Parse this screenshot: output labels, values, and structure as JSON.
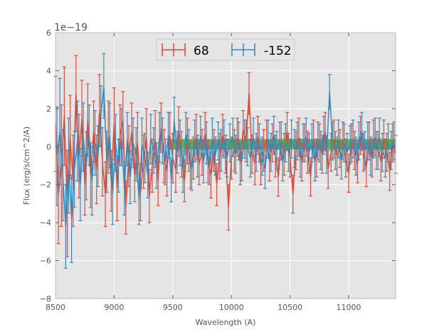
{
  "chart_data": {
    "type": "line",
    "title": "",
    "xlabel": "Wavelength (A)",
    "ylabel": "Flux (erg/s/cm^2/A)",
    "offset_text": "1e−19",
    "xlim": [
      8500,
      11400
    ],
    "ylim": [
      -8,
      6
    ],
    "xticks": [
      8500,
      9000,
      9500,
      10000,
      10500,
      11000
    ],
    "xtick_labels": [
      "8500",
      "9000",
      "9500",
      "10000",
      "10500",
      "11000"
    ],
    "yticks": [
      -8,
      -6,
      -4,
      -2,
      0,
      2,
      4,
      6
    ],
    "ytick_labels": [
      "−8",
      "−6",
      "−4",
      "−2",
      "0",
      "2",
      "4",
      "6"
    ],
    "grid": true,
    "legend_position": "top-center",
    "band": {
      "x0": 9470,
      "x1": 11400,
      "y0": -0.15,
      "y1": 0.4,
      "color": "#2ca02c"
    },
    "series": [
      {
        "name": "68",
        "color": "#e24a33",
        "x": [
          8500,
          8525,
          8550,
          8575,
          8600,
          8625,
          8650,
          8675,
          8700,
          8725,
          8750,
          8775,
          8800,
          8825,
          8850,
          8875,
          8900,
          8925,
          8950,
          8975,
          9000,
          9025,
          9050,
          9075,
          9100,
          9125,
          9150,
          9175,
          9200,
          9225,
          9250,
          9275,
          9300,
          9325,
          9350,
          9375,
          9400,
          9425,
          9450,
          9475,
          9500,
          9525,
          9550,
          9575,
          9600,
          9625,
          9650,
          9675,
          9700,
          9725,
          9750,
          9775,
          9800,
          9825,
          9850,
          9875,
          9900,
          9925,
          9950,
          9975,
          10000,
          10025,
          10050,
          10075,
          10100,
          10125,
          10150,
          10175,
          10200,
          10225,
          10250,
          10275,
          10300,
          10325,
          10350,
          10375,
          10400,
          10425,
          10450,
          10475,
          10500,
          10525,
          10550,
          10575,
          10600,
          10625,
          10650,
          10675,
          10700,
          10725,
          10750,
          10775,
          10800,
          10825,
          10850,
          10875,
          10900,
          10925,
          10950,
          10975,
          11000,
          11025,
          11050,
          11075,
          11100,
          11125,
          11150,
          11175,
          11200,
          11225,
          11250,
          11275,
          11300,
          11325,
          11350,
          11375,
          11400
        ],
        "y": [
          1.2,
          -2.5,
          -1.0,
          1.6,
          -3.0,
          0.5,
          -1.8,
          2.8,
          -0.5,
          1.5,
          -2.0,
          1.4,
          -1.5,
          0.8,
          -1.2,
          1.9,
          -0.8,
          -2.5,
          0.5,
          -1.8,
          1.2,
          -2.2,
          0.6,
          1.4,
          -3.2,
          -0.5,
          0.8,
          -1.5,
          0.2,
          -2.4,
          -0.8,
          0.5,
          -2.6,
          -1.0,
          0.4,
          -1.8,
          1.0,
          -0.5,
          -1.3,
          0.6,
          -0.6,
          -1.2,
          0.8,
          -0.4,
          -1.8,
          0.3,
          -1.0,
          -0.6,
          0.5,
          -0.9,
          -0.3,
          0.7,
          -0.8,
          -1.5,
          -0.2,
          -2.0,
          -0.5,
          0.6,
          -0.4,
          -3.2,
          -0.6,
          -0.2,
          0.5,
          -0.9,
          0.9,
          0.3,
          2.8,
          -0.4,
          -0.9,
          0.6,
          -1.0,
          -0.2,
          0.4,
          -0.8,
          0.2,
          -0.5,
          -1.6,
          0.3,
          -0.4,
          0.8,
          -0.6,
          -2.5,
          -0.2,
          0.5,
          -0.8,
          0.2,
          -0.3,
          -1.6,
          0.4,
          -0.6,
          0.2,
          -0.4,
          0.8,
          -1.2,
          -0.3,
          0.4,
          -0.5,
          -0.1,
          0.3,
          -0.6,
          -1.4,
          0.2,
          -0.2,
          -0.9,
          0.6,
          -0.3,
          -1.1,
          0.3,
          -0.6,
          0.5,
          -0.2,
          -0.8,
          0.4,
          -0.3,
          -1.3,
          0.2,
          -0.4
        ],
        "err": [
          2.5,
          2.6,
          3.2,
          2.6,
          2.8,
          2.2,
          2.4,
          2.0,
          2.2,
          2.0,
          1.6,
          1.9,
          1.7,
          1.6,
          1.8,
          1.9,
          1.8,
          1.7,
          1.9,
          1.6,
          1.9,
          1.7,
          1.6,
          1.5,
          1.4,
          1.6,
          1.5,
          1.4,
          1.6,
          1.5,
          1.4,
          1.5,
          1.4,
          1.4,
          1.5,
          1.3,
          1.3,
          1.4,
          1.3,
          1.2,
          1.3,
          1.2,
          1.3,
          1.2,
          1.1,
          1.2,
          1.2,
          1.1,
          1.2,
          1.1,
          1.2,
          1.1,
          1.1,
          1.2,
          1.1,
          1.1,
          1.2,
          1.1,
          1.0,
          1.2,
          1.1,
          1.1,
          1.0,
          1.1,
          1.0,
          1.1,
          1.1,
          1.0,
          1.1,
          1.0,
          1.0,
          1.1,
          1.0,
          1.0,
          1.0,
          1.1,
          1.0,
          1.0,
          1.1,
          1.0,
          1.0,
          1.0,
          1.0,
          1.0,
          1.0,
          1.0,
          1.1,
          1.0,
          1.0,
          1.0,
          1.0,
          1.0,
          1.0,
          1.0,
          1.0,
          1.0,
          1.0,
          1.0,
          1.0,
          1.0,
          1.0,
          1.0,
          1.0,
          1.0,
          1.0,
          1.0,
          1.0,
          1.0,
          1.0,
          1.0,
          1.0,
          1.0,
          1.0,
          1.0,
          1.0,
          1.0,
          1.0
        ]
      },
      {
        "name": "-152",
        "color": "#348abd",
        "x": [
          8512,
          8537,
          8562,
          8587,
          8612,
          8637,
          8662,
          8687,
          8712,
          8737,
          8762,
          8787,
          8812,
          8837,
          8862,
          8887,
          8912,
          8937,
          8962,
          8987,
          9012,
          9037,
          9062,
          9087,
          9112,
          9137,
          9162,
          9187,
          9212,
          9237,
          9262,
          9287,
          9312,
          9337,
          9362,
          9387,
          9412,
          9437,
          9462,
          9487,
          9512,
          9537,
          9562,
          9587,
          9612,
          9637,
          9662,
          9687,
          9712,
          9737,
          9762,
          9787,
          9812,
          9837,
          9862,
          9887,
          9912,
          9937,
          9962,
          9987,
          10012,
          10037,
          10062,
          10087,
          10112,
          10137,
          10162,
          10187,
          10212,
          10237,
          10262,
          10287,
          10312,
          10337,
          10362,
          10387,
          10412,
          10437,
          10462,
          10487,
          10512,
          10537,
          10562,
          10587,
          10612,
          10637,
          10662,
          10687,
          10712,
          10737,
          10762,
          10787,
          10812,
          10837,
          10862,
          10887,
          10912,
          10937,
          10962,
          10987,
          11012,
          11037,
          11062,
          11087,
          11112,
          11137,
          11162,
          11187,
          11212,
          11237,
          11262,
          11287,
          11312,
          11337,
          11362,
          11387
        ],
        "y": [
          -0.5,
          0.8,
          -1.5,
          -4.2,
          -1.0,
          -3.8,
          -1.2,
          0.3,
          -2.0,
          0.5,
          -1.0,
          0.6,
          -1.8,
          0.2,
          -0.5,
          1.6,
          3.2,
          -0.8,
          0.6,
          -2.5,
          0.2,
          -1.0,
          0.5,
          -2.2,
          0.4,
          -1.6,
          0.2,
          -0.4,
          -2.8,
          0.1,
          -0.6,
          -1.5,
          0.4,
          -0.2,
          -1.0,
          0.5,
          0.3,
          -0.8,
          0.6,
          -1.8,
          1.4,
          -0.3,
          0.2,
          -1.3,
          0.7,
          -0.2,
          -1.2,
          0.3,
          -0.5,
          0.6,
          -0.8,
          0.2,
          -1.0,
          0.4,
          -0.5,
          0.3,
          -0.2,
          0.4,
          -0.6,
          0.2,
          0.5,
          -0.4,
          0.3,
          -0.8,
          0.4,
          0.0,
          -0.6,
          0.5,
          -0.3,
          0.2,
          -0.5,
          -1.2,
          0.4,
          -0.3,
          0.6,
          -0.2,
          0.3,
          -0.8,
          0.2,
          -0.3,
          0.4,
          -0.1,
          0.3,
          -0.6,
          0.2,
          0.5,
          -0.3,
          0.2,
          -0.8,
          0.3,
          -0.2,
          0.6,
          -0.4,
          2.9,
          0.3,
          -0.2,
          0.4,
          -0.7,
          0.2,
          -0.3,
          0.1,
          0.4,
          -0.5,
          0.3,
          0.8,
          -0.2,
          0.3,
          -0.5,
          0.4,
          -0.2,
          0.5,
          -0.3,
          -0.6,
          0.2,
          -0.2,
          0.3
        ],
        "err": [
          2.6,
          2.8,
          2.4,
          2.2,
          2.5,
          2.3,
          2.0,
          2.1,
          1.9,
          1.8,
          1.8,
          1.6,
          1.8,
          1.7,
          1.6,
          1.6,
          1.7,
          1.6,
          1.7,
          1.6,
          1.5,
          1.4,
          1.5,
          1.4,
          1.4,
          1.4,
          1.3,
          1.4,
          1.3,
          1.4,
          1.3,
          1.2,
          1.3,
          1.2,
          1.2,
          1.3,
          1.2,
          1.2,
          1.2,
          1.1,
          1.2,
          1.1,
          1.2,
          1.1,
          1.1,
          1.1,
          1.1,
          1.1,
          1.1,
          1.0,
          1.1,
          1.1,
          1.0,
          1.1,
          1.0,
          1.0,
          1.1,
          1.0,
          1.0,
          1.0,
          1.0,
          1.0,
          1.0,
          1.0,
          1.0,
          1.0,
          1.0,
          1.0,
          1.0,
          1.0,
          1.0,
          1.0,
          1.0,
          1.0,
          1.0,
          1.0,
          1.0,
          1.0,
          1.0,
          1.0,
          1.0,
          1.0,
          1.0,
          1.0,
          1.0,
          1.0,
          1.0,
          1.0,
          1.0,
          1.0,
          1.0,
          1.0,
          1.0,
          0.9,
          1.0,
          1.0,
          1.0,
          1.0,
          1.0,
          1.0,
          1.0,
          1.0,
          1.0,
          1.0,
          1.0,
          1.0,
          1.0,
          1.0,
          1.0,
          1.0,
          1.0,
          1.0,
          1.0,
          1.0,
          1.0,
          1.0
        ]
      }
    ]
  }
}
